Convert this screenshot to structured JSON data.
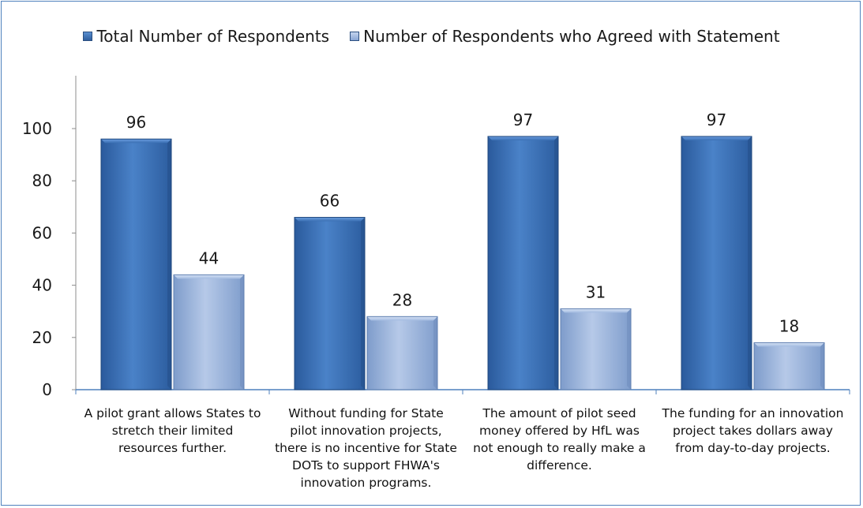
{
  "chart_data": {
    "type": "bar",
    "categories": [
      "A pilot grant allows States to stretch their limited resources further.",
      "Without funding for State pilot innovation projects, there is no incentive for State DOTs to support FHWA's innovation programs.",
      "The amount of pilot seed money offered by HfL was not enough to really make a difference.",
      "The funding for an innovation project takes dollars away from day-to-day projects."
    ],
    "category_lines": [
      [
        "A pilot grant allows States to",
        "stretch their limited",
        "resources further."
      ],
      [
        "Without funding for State",
        "pilot innovation projects,",
        "there is no incentive for State",
        "DOTs to support FHWA's",
        "innovation programs."
      ],
      [
        "The amount of pilot seed",
        "money offered by HfL was",
        "not enough to really make a",
        "difference."
      ],
      [
        "The funding for an innovation",
        "project takes dollars away",
        "from day-to-day projects."
      ]
    ],
    "series": [
      {
        "name": "Total Number of Respondents",
        "values": [
          96,
          66,
          97,
          97
        ],
        "color": "#3a6fb3"
      },
      {
        "name": "Number of Respondents who Agreed with Statement",
        "values": [
          44,
          28,
          31,
          18
        ],
        "color": "#93aedb"
      }
    ],
    "ylim": [
      0,
      100
    ],
    "yticks": [
      "0",
      "20",
      "40",
      "60",
      "80",
      "100"
    ],
    "ytick_values": [
      0,
      20,
      40,
      60,
      80,
      100
    ],
    "legend_position": "top",
    "grid": false,
    "data_labels": true,
    "title": "",
    "xlabel": "",
    "ylabel": ""
  }
}
